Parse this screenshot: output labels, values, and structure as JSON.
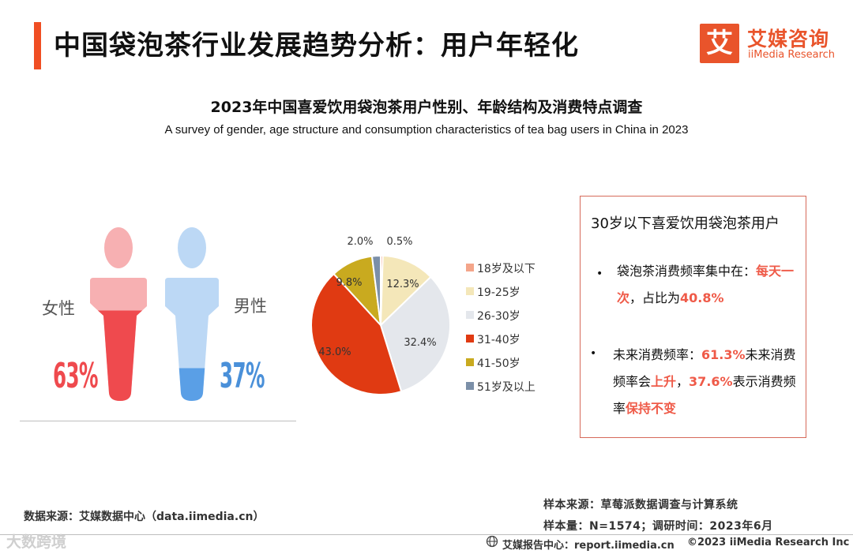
{
  "header": {
    "title": "中国袋泡茶行业发展趋势分析：用户年轻化",
    "logo_cn": "艾媒咨询",
    "logo_en": "iiMedia Research",
    "logo_mark": "艾"
  },
  "chart_header": {
    "title": "2023年中国喜爱饮用袋泡茶用户性别、年龄结构及消费特点调查",
    "subtitle": "A survey of gender, age structure and consumption characteristics of tea bag users in China in 2023"
  },
  "chart_data": [
    {
      "type": "pictogram",
      "categories": [
        "女性",
        "男性"
      ],
      "values": [
        63,
        37
      ],
      "value_labels": [
        "63%",
        "37%"
      ],
      "colors": [
        "#ef4a4e",
        "#5a9fe6"
      ],
      "light_colors": [
        "#f7b0b2",
        "#bcd8f5"
      ]
    },
    {
      "type": "pie",
      "categories": [
        "18岁及以下",
        "19-25岁",
        "26-30岁",
        "31-40岁",
        "41-50岁",
        "51岁及以上"
      ],
      "values": [
        0.5,
        12.3,
        32.4,
        43.0,
        9.8,
        2.0
      ],
      "value_labels": [
        "0.5%",
        "12.3%",
        "32.4%",
        "43.0%",
        "9.8%",
        "2.0%"
      ],
      "colors": [
        "#f4a58a",
        "#f4e7b9",
        "#e4e7ec",
        "#e03a12",
        "#c9aa1f",
        "#7b8fa8"
      ],
      "legend_position": "right"
    }
  ],
  "info_box": {
    "title": "30岁以下喜爱饮用袋泡茶用户",
    "bullet_symbol": "•",
    "b1_text_a": "袋泡茶消费频率集中在：",
    "b1_hl_a": "每天一次",
    "b1_text_b": "，占比为",
    "b1_hl_b": "40.8%",
    "b2_text_a": "未来消费频率：",
    "b2_hl_a": "61.3%",
    "b2_text_b": "未来消费频率会",
    "b2_hl_b": "上升",
    "b2_text_c": "，",
    "b2_hl_c": "37.6%",
    "b2_text_d": "表示消费频率",
    "b2_hl_d": "保持不变"
  },
  "footer": {
    "data_source": "数据来源：艾媒数据中心（data.iimedia.cn）",
    "sample_source": "样本来源：草莓派数据调查与计算系统",
    "sample_size": "样本量：N=1574；调研时间：2023年6月",
    "report_center": "艾媒报告中心：report.iimedia.cn",
    "copyright": "©2023  iiMedia Research  Inc",
    "watermark": "大数跨境"
  }
}
